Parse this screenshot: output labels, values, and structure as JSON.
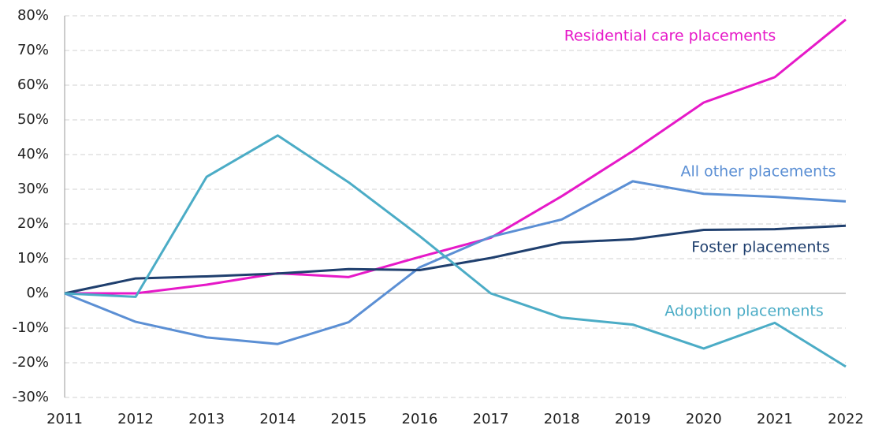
{
  "chart_data": {
    "type": "line",
    "categories": [
      "2011",
      "2012",
      "2013",
      "2014",
      "2015",
      "2016",
      "2017",
      "2018",
      "2019",
      "2020",
      "2021",
      "2022"
    ],
    "series": [
      {
        "name": "Residential care placements",
        "color": "#e619c8",
        "values": [
          0,
          0,
          2.5,
          5.8,
          4.7,
          10.5,
          16,
          28,
          41,
          55,
          62.3,
          78.9
        ]
      },
      {
        "name": "All other placements",
        "color": "#5b8fd4",
        "values": [
          0,
          -8.2,
          -12.7,
          -14.6,
          -8.3,
          7.5,
          16.3,
          21.3,
          32.3,
          28.7,
          27.8,
          26.5
        ]
      },
      {
        "name": "Foster placements",
        "color": "#1f3f6e",
        "values": [
          0,
          4.3,
          4.9,
          5.7,
          7.0,
          6.7,
          10.2,
          14.6,
          15.6,
          18.3,
          18.5,
          19.5
        ]
      },
      {
        "name": "Adoption placements",
        "color": "#4bacc6",
        "values": [
          0,
          -1,
          33.6,
          45.5,
          32,
          16.5,
          0,
          -7,
          -9,
          -15.9,
          -8.5,
          -21.1
        ]
      }
    ],
    "ylim": [
      -30,
      80
    ],
    "yticks": [
      {
        "value": -30,
        "label": "-30%"
      },
      {
        "value": -20,
        "label": "-20%"
      },
      {
        "value": -10,
        "label": "-10%"
      },
      {
        "value": 0,
        "label": "0%"
      },
      {
        "value": 10,
        "label": "10%"
      },
      {
        "value": 20,
        "label": "20%"
      },
      {
        "value": 30,
        "label": "30%"
      },
      {
        "value": 40,
        "label": "40%"
      },
      {
        "value": 50,
        "label": "50%"
      },
      {
        "value": 60,
        "label": "60%"
      },
      {
        "value": 70,
        "label": "70%"
      },
      {
        "value": 80,
        "label": "80%"
      }
    ],
    "grid": true
  }
}
